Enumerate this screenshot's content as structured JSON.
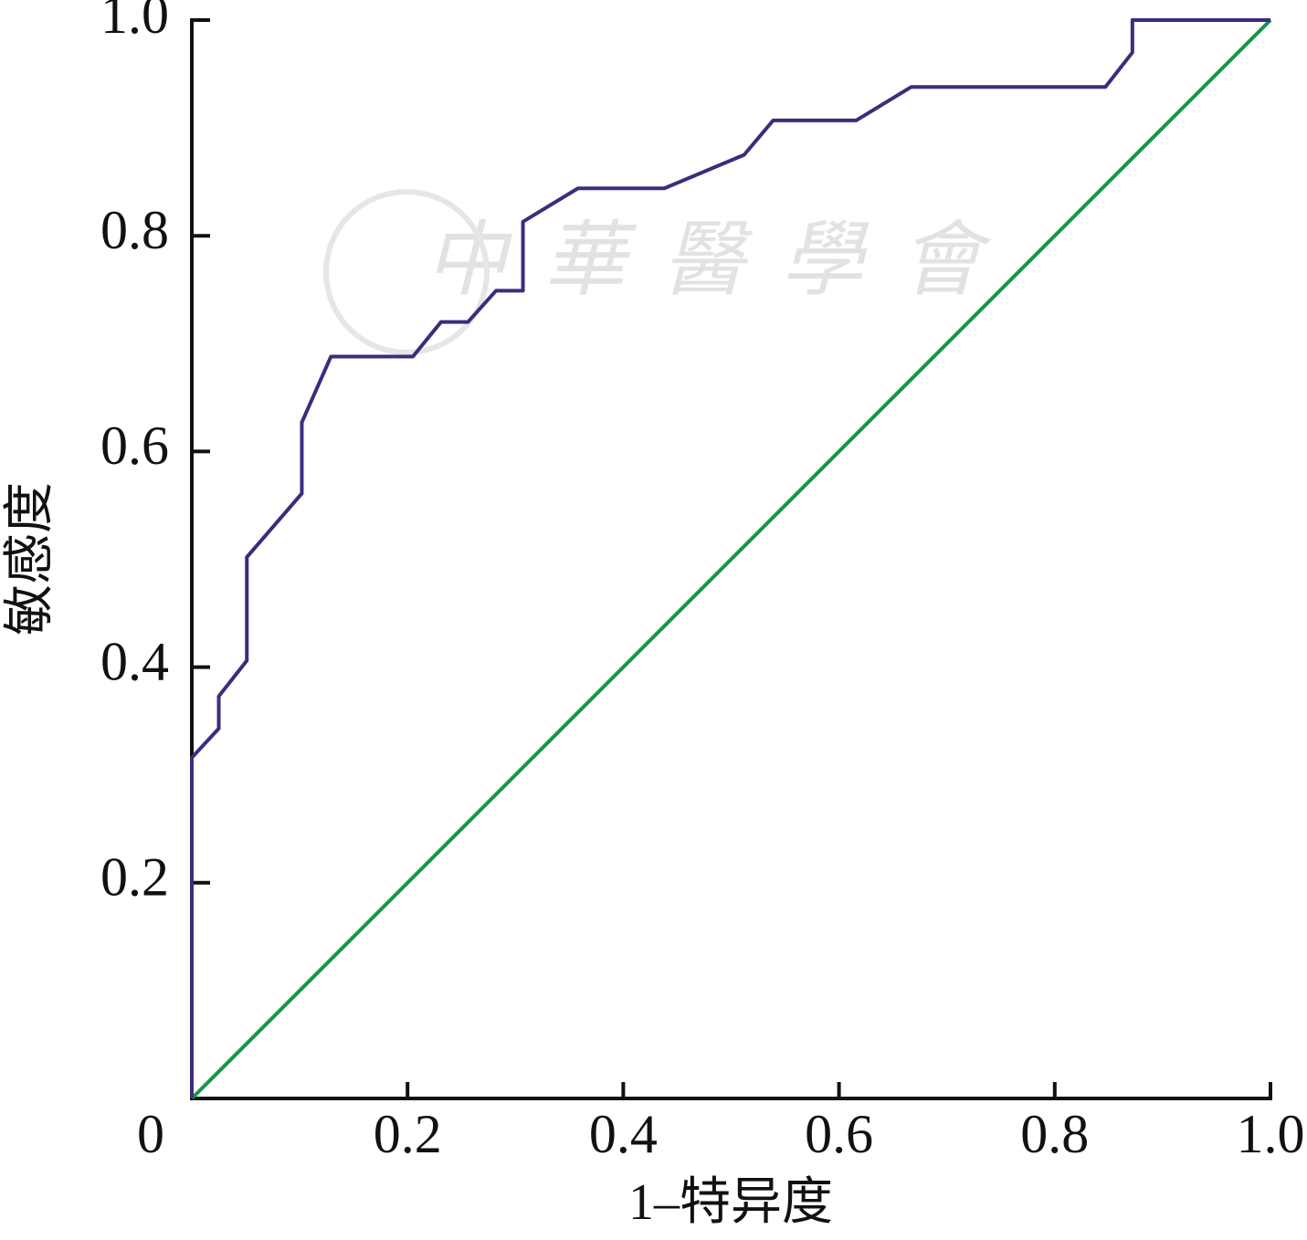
{
  "chart_data": {
    "type": "line",
    "xlabel": "1–特异度",
    "ylabel": "敏感度",
    "watermark": "中華醫學會",
    "xlim": [
      0,
      1
    ],
    "ylim": [
      0,
      1
    ],
    "xticks": [
      0,
      0.2,
      0.4,
      0.6,
      0.8,
      {
        "value": 1,
        "label": "1.0"
      }
    ],
    "yticks": [
      0.2,
      0.4,
      0.6,
      0.8,
      {
        "value": 1,
        "label": "1.0"
      }
    ],
    "series": [
      {
        "color": "#3b2d7c",
        "x": [
          0,
          0,
          0.025,
          0.025,
          0.051,
          0.051,
          0.102,
          0.102,
          0.129,
          0.205,
          0.231,
          0.256,
          0.282,
          0.307,
          0.307,
          0.358,
          0.438,
          0.512,
          0.539,
          0.616,
          0.667,
          0.847,
          0.872,
          0.872,
          1
        ],
        "values": [
          0,
          0.316,
          0.343,
          0.373,
          0.406,
          0.502,
          0.561,
          0.627,
          0.688,
          0.688,
          0.72,
          0.72,
          0.749,
          0.749,
          0.813,
          0.844,
          0.844,
          0.875,
          0.907,
          0.907,
          0.938,
          0.938,
          0.97,
          1,
          1
        ]
      },
      {
        "color": "#17944c",
        "x": [
          0,
          1
        ],
        "values": [
          0,
          1
        ]
      }
    ]
  }
}
